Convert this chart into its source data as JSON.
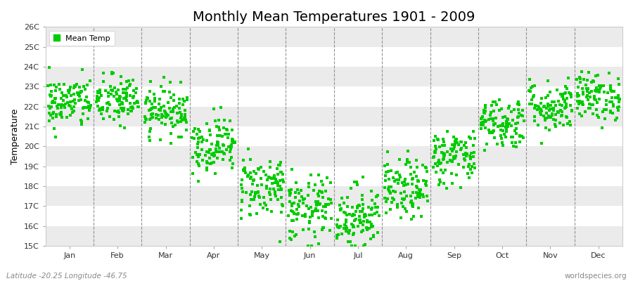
{
  "title": "Monthly Mean Temperatures 1901 - 2009",
  "ylabel": "Temperature",
  "xlabel_labels": [
    "Jan",
    "Feb",
    "Mar",
    "Apr",
    "May",
    "Jun",
    "Jul",
    "Aug",
    "Sep",
    "Oct",
    "Nov",
    "Dec"
  ],
  "ylim": [
    15,
    26
  ],
  "ytick_labels": [
    "15C",
    "16C",
    "17C",
    "18C",
    "19C",
    "20C",
    "21C",
    "22C",
    "23C",
    "24C",
    "25C",
    "26C"
  ],
  "ytick_values": [
    15,
    16,
    17,
    18,
    19,
    20,
    21,
    22,
    23,
    24,
    25,
    26
  ],
  "dot_color": "#00CC00",
  "background_color": "#FFFFFF",
  "plot_bg_color": "#FFFFFF",
  "band_color": "#EBEBEB",
  "title_fontsize": 14,
  "axis_label_fontsize": 9,
  "tick_fontsize": 8,
  "legend_label": "Mean Temp",
  "footer_left": "Latitude -20.25 Longitude -46.75",
  "footer_right": "worldspecies.org",
  "monthly_means": [
    22.2,
    22.3,
    21.8,
    20.1,
    18.0,
    16.8,
    16.5,
    17.8,
    19.5,
    21.2,
    22.0,
    22.5
  ],
  "monthly_stds": [
    0.65,
    0.65,
    0.6,
    0.7,
    0.8,
    0.85,
    0.8,
    0.75,
    0.7,
    0.65,
    0.65,
    0.6
  ],
  "n_years": 109,
  "seed": 42
}
